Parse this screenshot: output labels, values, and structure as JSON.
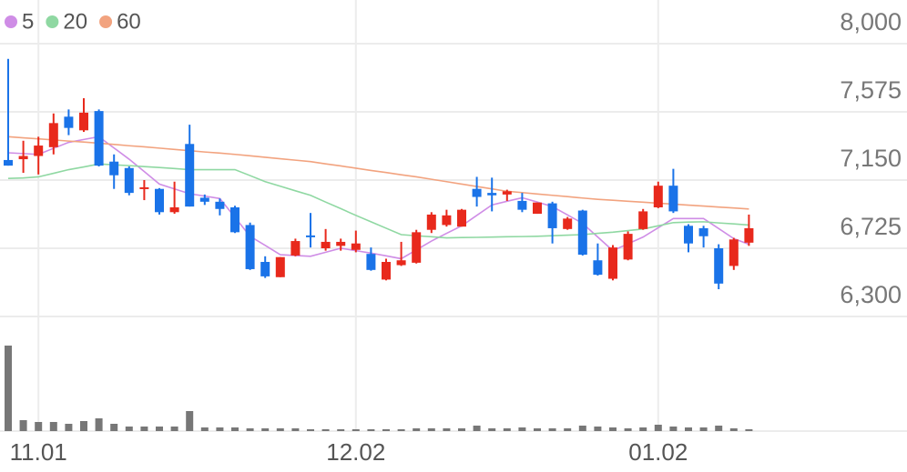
{
  "chart_data": {
    "type": "candlestick",
    "categories": [
      null,
      null,
      "11.01",
      null,
      null,
      null,
      null,
      null,
      null,
      null,
      null,
      null,
      null,
      null,
      null,
      null,
      null,
      null,
      null,
      null,
      null,
      null,
      null,
      "12.02",
      null,
      null,
      null,
      null,
      null,
      null,
      null,
      null,
      null,
      null,
      null,
      null,
      null,
      null,
      null,
      null,
      null,
      null,
      null,
      "01.02",
      null,
      null,
      null,
      null,
      null,
      null
    ],
    "open": [
      7275,
      7280,
      7300,
      7355,
      7545,
      7460,
      7580,
      7265,
      7225,
      7095,
      7095,
      6950,
      7375,
      7040,
      7015,
      6980,
      6870,
      6640,
      6545,
      6680,
      6805,
      6725,
      6740,
      6715,
      6690,
      6530,
      6620,
      6635,
      6840,
      6870,
      6860,
      7095,
      7070,
      7060,
      7020,
      6940,
      7005,
      6845,
      6960,
      6650,
      6535,
      6655,
      6845,
      6980,
      7115,
      6865,
      6850,
      6725,
      6615,
      6760
    ],
    "high": [
      7905,
      7395,
      7420,
      7565,
      7590,
      7660,
      7590,
      7310,
      7235,
      7150,
      7100,
      7140,
      7495,
      7060,
      7035,
      6990,
      6885,
      6675,
      6670,
      6785,
      6945,
      6845,
      6785,
      6835,
      6730,
      6660,
      6765,
      6840,
      6950,
      6965,
      6970,
      7170,
      7165,
      7090,
      7070,
      7010,
      7015,
      6920,
      6965,
      6755,
      6745,
      6830,
      6970,
      7140,
      7220,
      6875,
      6865,
      6750,
      6790,
      6935
    ],
    "low": [
      7240,
      7195,
      7185,
      7310,
      7430,
      7450,
      7235,
      7095,
      7055,
      7025,
      6935,
      6940,
      6985,
      6995,
      6930,
      6820,
      6590,
      6540,
      6545,
      6675,
      6730,
      6710,
      6710,
      6700,
      6585,
      6525,
      6615,
      6630,
      6820,
      6860,
      6860,
      6985,
      6955,
      7020,
      6950,
      6940,
      6755,
      6840,
      6680,
      6555,
      6525,
      6650,
      6840,
      6975,
      6945,
      6700,
      6730,
      6470,
      6590,
      6740
    ],
    "close": [
      7240,
      7300,
      7365,
      7505,
      7475,
      7570,
      7240,
      7180,
      7070,
      7105,
      6950,
      6980,
      6985,
      7015,
      6970,
      6825,
      6595,
      6550,
      6670,
      6770,
      6795,
      6765,
      6765,
      6755,
      6590,
      6640,
      6650,
      6825,
      6935,
      6930,
      6965,
      7045,
      7055,
      7080,
      6965,
      7010,
      6850,
      6910,
      6685,
      6560,
      6730,
      6815,
      6955,
      7115,
      6955,
      6755,
      6800,
      6505,
      6780,
      6850
    ],
    "volume": [
      94,
      12,
      10,
      10,
      8,
      11,
      14,
      8,
      5,
      5,
      5,
      5,
      22,
      4,
      4,
      4,
      3,
      3,
      3,
      3,
      2,
      2,
      2,
      2,
      2,
      2,
      2,
      3,
      3,
      3,
      3,
      6,
      3,
      3,
      4,
      3,
      3,
      3,
      6,
      5,
      4,
      3,
      4,
      7,
      5,
      4,
      4,
      6,
      3,
      2
    ],
    "series": [
      {
        "name": "5",
        "color": "#cf8de6",
        "values": [
          7320,
          7315,
          7310,
          7348,
          7385,
          7403,
          7420,
          7350,
          7280,
          7203,
          7125,
          7095,
          7065,
          7050,
          7035,
          6918,
          6800,
          6743,
          6685,
          6680,
          6675,
          6700,
          6725,
          6710,
          6695,
          6678,
          6660,
          6715,
          6770,
          6818,
          6865,
          6930,
          6995,
          7018,
          7040,
          7013,
          6985,
          6933,
          6880,
          6795,
          6710,
          6753,
          6795,
          6853,
          6910,
          6910,
          6910,
          6848,
          6785,
          6750
        ]
      },
      {
        "name": "20",
        "color": "#8fd8a2",
        "values": [
          7160,
          7163,
          7170,
          7192,
          7215,
          7232,
          7250,
          7245,
          7240,
          7234,
          7228,
          7222,
          7215,
          7215,
          7215,
          7215,
          7178,
          7140,
          7112,
          7083,
          7055,
          7013,
          6972,
          6930,
          6890,
          6850,
          6810,
          6803,
          6797,
          6790,
          6792,
          6793,
          6795,
          6797,
          6798,
          6800,
          6803,
          6807,
          6810,
          6818,
          6825,
          6835,
          6845,
          6865,
          6885,
          6888,
          6890,
          6883,
          6877,
          6870
        ]
      },
      {
        "name": "60",
        "color": "#f2a37f",
        "values": [
          7420,
          7413,
          7407,
          7400,
          7393,
          7387,
          7380,
          7372,
          7364,
          7357,
          7349,
          7341,
          7333,
          7325,
          7318,
          7310,
          7301,
          7292,
          7283,
          7274,
          7265,
          7251,
          7238,
          7224,
          7210,
          7197,
          7183,
          7170,
          7155,
          7140,
          7125,
          7110,
          7095,
          7080,
          7072,
          7063,
          7055,
          7047,
          7038,
          7030,
          7024,
          7018,
          7012,
          7006,
          7000,
          6994,
          6988,
          6982,
          6976,
          6970
        ]
      }
    ],
    "up_color": "#e8291c",
    "down_color": "#1a73e8",
    "volume_color": "#777777",
    "ylim": [
      6300,
      8000
    ],
    "yticks": [
      {
        "value": 8000,
        "label": "8,000"
      },
      {
        "value": 7575,
        "label": "7,575"
      },
      {
        "value": 7150,
        "label": "7,150"
      },
      {
        "value": 6725,
        "label": "6,725"
      },
      {
        "value": 6300,
        "label": "6,300"
      }
    ],
    "volume_lim": [
      0,
      100
    ],
    "grid": true
  }
}
